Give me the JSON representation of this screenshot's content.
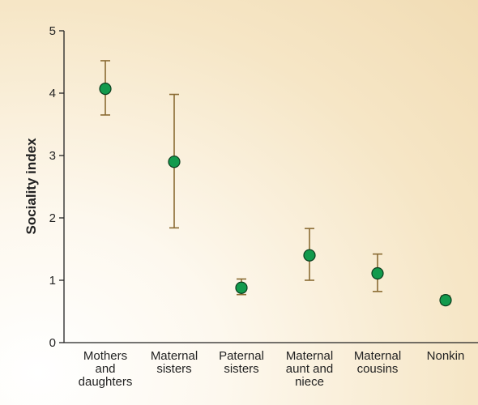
{
  "chart_data": {
    "type": "scatter",
    "title": "",
    "xlabel": "",
    "ylabel": "Sociality index",
    "ylim": [
      0,
      5
    ],
    "yticks": [
      "0",
      "1",
      "2",
      "3",
      "4",
      "5"
    ],
    "grid": false,
    "categories": [
      [
        "Mothers",
        "and",
        "daughters"
      ],
      [
        "Maternal",
        "sisters"
      ],
      [
        "Paternal",
        "sisters"
      ],
      [
        "Maternal",
        "aunt and",
        "niece"
      ],
      [
        "Maternal",
        "cousins"
      ],
      [
        "Nonkin"
      ]
    ],
    "series": [
      {
        "values": [
          4.07,
          2.9,
          0.88,
          1.4,
          1.11,
          0.68
        ],
        "error_low": [
          3.65,
          1.84,
          0.77,
          1.0,
          0.82,
          0.62
        ],
        "error_high": [
          4.52,
          3.98,
          1.02,
          1.83,
          1.42,
          0.75
        ]
      }
    ],
    "colors": {
      "marker_fill": "#129a4d",
      "marker_stroke": "#0b3d1e",
      "error_bar": "#8a6b33",
      "axis": "#222222"
    }
  }
}
